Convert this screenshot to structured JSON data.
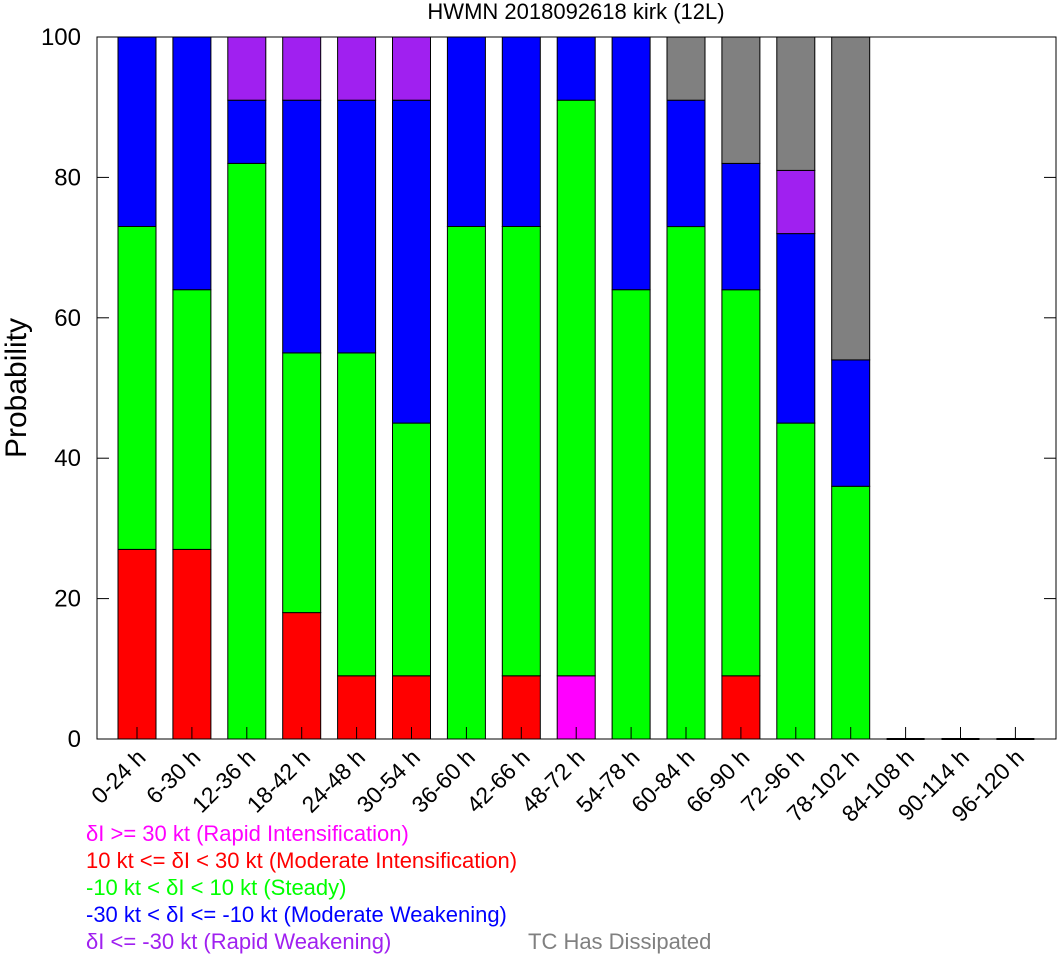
{
  "chart_data": {
    "type": "bar",
    "stacked": true,
    "title": "HWMN 2018092618 kirk (12L)",
    "xlabel": "",
    "ylabel": "Probability",
    "ylim": [
      0,
      100
    ],
    "yticks": [
      0,
      20,
      40,
      60,
      80,
      100
    ],
    "grid": false,
    "categories": [
      "0-24 h",
      "6-30 h",
      "12-36 h",
      "18-42 h",
      "24-48 h",
      "30-54 h",
      "36-60 h",
      "42-66 h",
      "48-72 h",
      "54-78 h",
      "60-84 h",
      "66-90 h",
      "72-96 h",
      "78-102 h",
      "84-108 h",
      "90-114 h",
      "96-120 h"
    ],
    "series": [
      {
        "key": "ri",
        "color": "#ff00ff",
        "values": [
          0,
          0,
          0,
          0,
          0,
          0,
          0,
          0,
          9,
          0,
          0,
          0,
          0,
          0,
          0,
          0,
          0
        ]
      },
      {
        "key": "mi",
        "color": "#ff0000",
        "values": [
          27,
          27,
          0,
          18,
          9,
          9,
          0,
          9,
          0,
          0,
          0,
          9,
          0,
          0,
          0,
          0,
          0
        ]
      },
      {
        "key": "st",
        "color": "#00ff00",
        "values": [
          46,
          37,
          82,
          37,
          46,
          36,
          73,
          64,
          82,
          64,
          73,
          55,
          45,
          36,
          0,
          0,
          0
        ]
      },
      {
        "key": "mw",
        "color": "#0000ff",
        "values": [
          27,
          36,
          9,
          36,
          36,
          46,
          27,
          27,
          9,
          36,
          18,
          18,
          27,
          18,
          0,
          0,
          0
        ]
      },
      {
        "key": "rw",
        "color": "#a020f0",
        "values": [
          0,
          0,
          9,
          9,
          9,
          9,
          0,
          0,
          0,
          0,
          0,
          0,
          9,
          0,
          0,
          0,
          0
        ]
      },
      {
        "key": "dis",
        "color": "#808080",
        "values": [
          0,
          0,
          0,
          0,
          0,
          0,
          0,
          0,
          0,
          0,
          9,
          18,
          19,
          46,
          0,
          0,
          0
        ]
      }
    ]
  },
  "legend": [
    {
      "text": "δI >= 30 kt (Rapid Intensification)",
      "color": "#ff00ff"
    },
    {
      "text": "10 kt <= δI < 30 kt (Moderate Intensification)",
      "color": "#ff0000"
    },
    {
      "text": "-10 kt < δI < 10 kt (Steady)",
      "color": "#00ff00"
    },
    {
      "text": "-30 kt < δI <= -10 kt (Moderate Weakening)",
      "color": "#0000ff"
    },
    {
      "text": "δI <= -30 kt (Rapid Weakening)",
      "color": "#a020f0"
    },
    {
      "text": "TC Has Dissipated",
      "color": "#808080"
    }
  ]
}
